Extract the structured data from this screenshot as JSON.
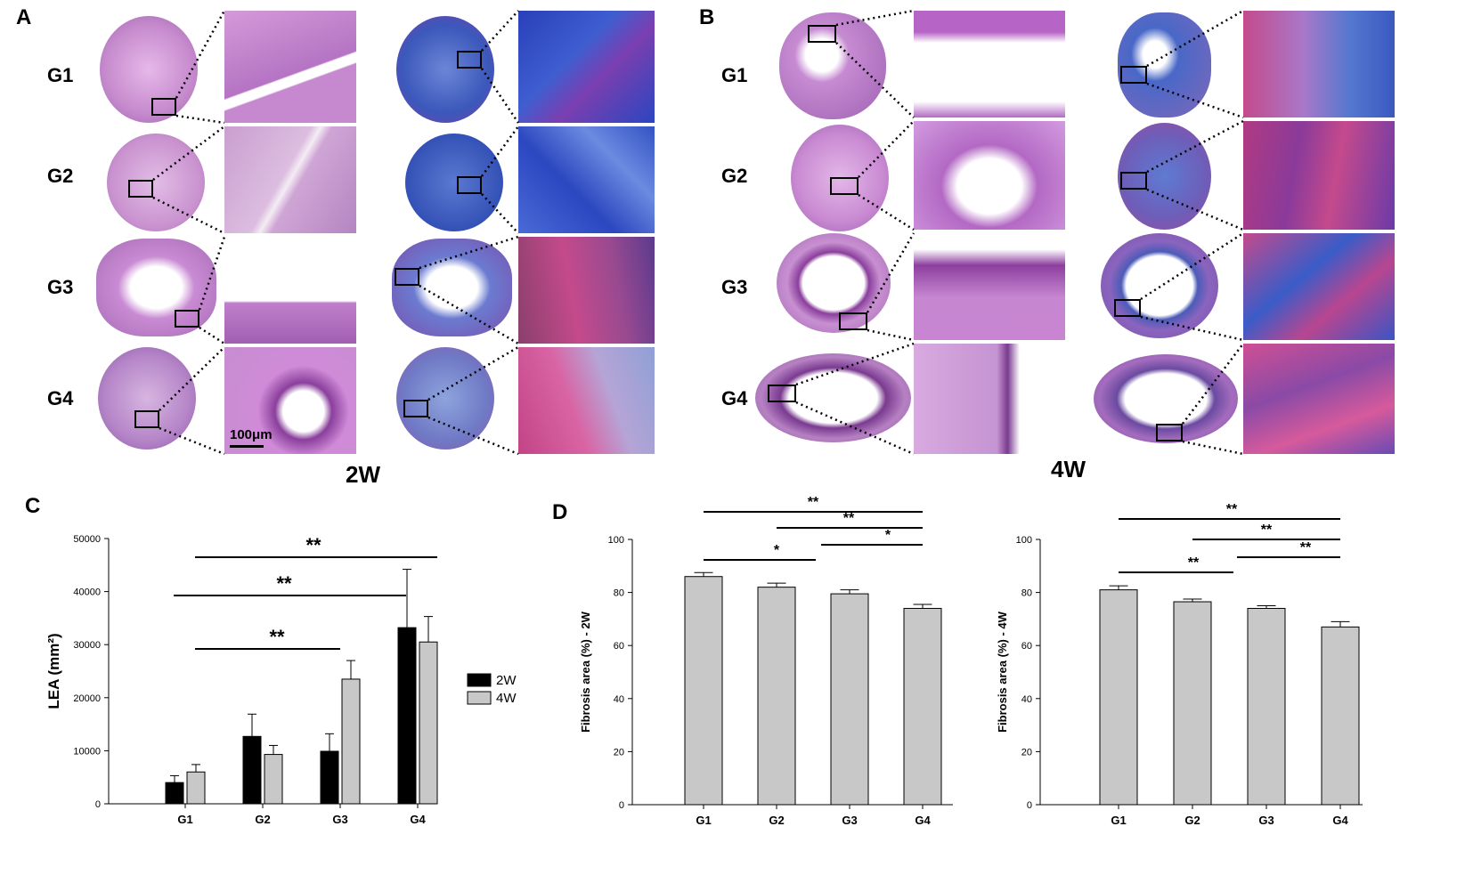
{
  "figure": {
    "panels": {
      "A": {
        "letter": "A",
        "week": "2W",
        "rows": [
          "G1",
          "G2",
          "G3",
          "G4"
        ],
        "scale_bar": "100μm"
      },
      "B": {
        "letter": "B",
        "week": "4W",
        "rows": [
          "G1",
          "G2",
          "G3",
          "G4"
        ]
      },
      "C": {
        "letter": "C"
      },
      "D": {
        "letter": "D"
      }
    },
    "colors": {
      "he_stain": "#c98bd3",
      "he_dark": "#8a3f9c",
      "trichrome_blue": "#3d5fc4",
      "trichrome_red": "#c44a8c",
      "bar_black": "#000000",
      "bar_gray": "#c8c8c8"
    }
  },
  "chart_data": [
    {
      "id": "C",
      "type": "bar",
      "ylabel": "LEA (mm²)",
      "categories": [
        "G1",
        "G2",
        "G3",
        "G4"
      ],
      "ylim": [
        0,
        50000
      ],
      "yticks": [
        0,
        10000,
        20000,
        30000,
        40000,
        50000
      ],
      "series": [
        {
          "name": "2W",
          "color": "#000000",
          "values": [
            4000,
            12700,
            9900,
            33200
          ],
          "errors": [
            1300,
            4200,
            3300,
            11000
          ]
        },
        {
          "name": "4W",
          "color": "#c8c8c8",
          "values": [
            6000,
            9300,
            23500,
            30500
          ],
          "errors": [
            1400,
            1700,
            3500,
            4800
          ]
        }
      ],
      "legend": "right",
      "significance": [
        {
          "from": "G1",
          "to": "G4",
          "label": "**"
        },
        {
          "from": "G1",
          "to": "G4",
          "label": "**"
        },
        {
          "from": "G1",
          "to": "G3",
          "label": "**"
        }
      ]
    },
    {
      "id": "D1",
      "type": "bar",
      "ylabel": "Fibrosis area (%) - 2W",
      "categories": [
        "G1",
        "G2",
        "G3",
        "G4"
      ],
      "ylim": [
        0,
        100
      ],
      "yticks": [
        0,
        20,
        40,
        60,
        80,
        100
      ],
      "series": [
        {
          "color": "#c8c8c8",
          "values": [
            86,
            82,
            79.5,
            74
          ],
          "errors": [
            1.5,
            1.5,
            1.5,
            1.5
          ]
        }
      ],
      "significance": [
        {
          "from": "G1",
          "to": "G4",
          "label": "**"
        },
        {
          "from": "G2",
          "to": "G4",
          "label": "**"
        },
        {
          "from": "G3",
          "to": "G4",
          "label": "*"
        },
        {
          "from": "G1",
          "to": "G3",
          "label": "*"
        }
      ]
    },
    {
      "id": "D2",
      "type": "bar",
      "ylabel": "Fibrosis area (%) - 4W",
      "categories": [
        "G1",
        "G2",
        "G3",
        "G4"
      ],
      "ylim": [
        0,
        100
      ],
      "yticks": [
        0,
        20,
        40,
        60,
        80,
        100
      ],
      "series": [
        {
          "color": "#c8c8c8",
          "values": [
            81,
            76.5,
            74,
            67
          ],
          "errors": [
            1.5,
            1,
            1,
            2
          ]
        }
      ],
      "significance": [
        {
          "from": "G1",
          "to": "G4",
          "label": "**"
        },
        {
          "from": "G2",
          "to": "G4",
          "label": "**"
        },
        {
          "from": "G3",
          "to": "G4",
          "label": "**"
        },
        {
          "from": "G1",
          "to": "G3",
          "label": "**"
        }
      ]
    }
  ]
}
